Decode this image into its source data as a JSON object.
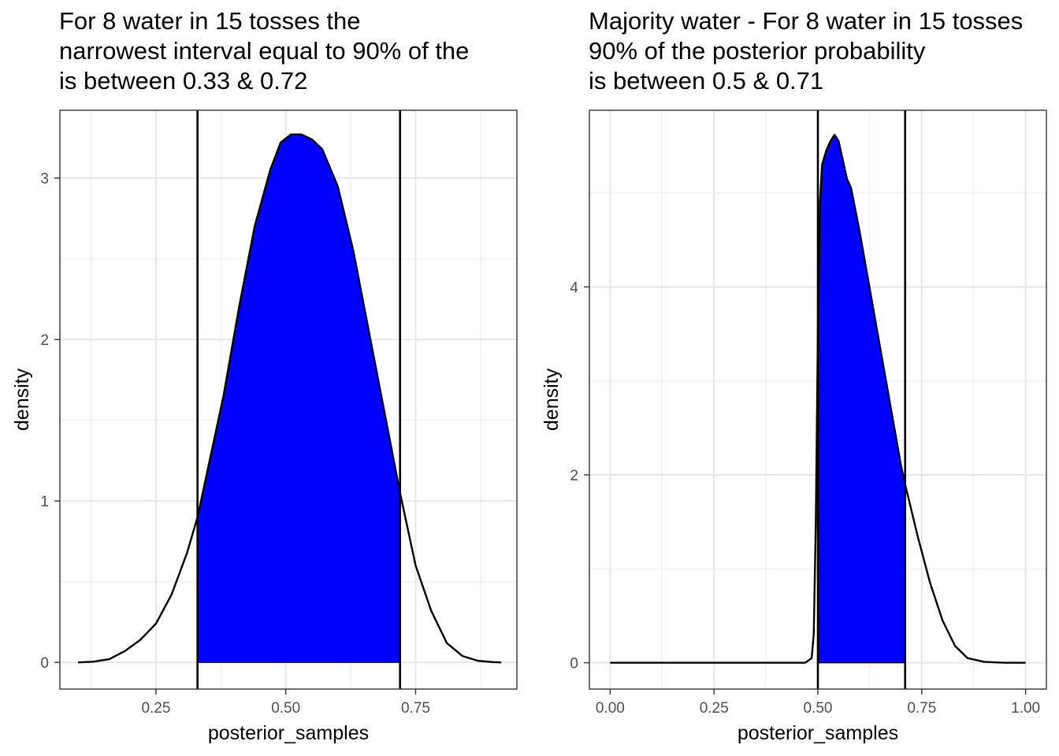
{
  "chart_data": [
    {
      "type": "area",
      "title_lines": [
        "For 8 water in 15 tosses the",
        "narrowest interval equal to 90% of the",
        "is between 0.33 & 0.72"
      ],
      "xlabel": "posterior_samples",
      "ylabel": "density",
      "xlim": [
        0.065,
        0.945
      ],
      "ylim": [
        -0.165,
        3.42
      ],
      "xticks": [
        0.25,
        0.5,
        0.75
      ],
      "xtick_labels": [
        "0.25",
        "0.50",
        "0.75"
      ],
      "yticks": [
        0,
        1,
        2,
        3
      ],
      "ytick_labels": [
        "0",
        "1",
        "2",
        "3"
      ],
      "grid": true,
      "shade_color": "#0000ff",
      "interval": [
        0.33,
        0.72
      ],
      "series": [
        {
          "x": [
            0.1,
            0.13,
            0.16,
            0.19,
            0.22,
            0.25,
            0.28,
            0.31,
            0.33,
            0.35,
            0.38,
            0.41,
            0.44,
            0.47,
            0.49,
            0.51,
            0.53,
            0.55,
            0.57,
            0.6,
            0.63,
            0.66,
            0.69,
            0.72,
            0.75,
            0.78,
            0.81,
            0.84,
            0.87,
            0.9,
            0.915
          ],
          "y": [
            0.0,
            0.005,
            0.02,
            0.07,
            0.14,
            0.24,
            0.42,
            0.68,
            0.9,
            1.2,
            1.65,
            2.2,
            2.7,
            3.05,
            3.22,
            3.27,
            3.27,
            3.24,
            3.18,
            2.95,
            2.55,
            2.05,
            1.55,
            1.05,
            0.6,
            0.32,
            0.12,
            0.04,
            0.01,
            0.002,
            0.0
          ]
        }
      ]
    },
    {
      "type": "area",
      "title_lines": [
        "Majority water - For 8 water in 15 tosses",
        "90% of the posterior probability",
        "is between 0.5 & 0.71"
      ],
      "xlabel": "posterior_samples",
      "ylabel": "density",
      "xlim": [
        -0.05,
        1.05
      ],
      "ylim": [
        -0.28,
        5.88
      ],
      "xticks": [
        0.0,
        0.25,
        0.5,
        0.75,
        1.0
      ],
      "xtick_labels": [
        "0.00",
        "0.25",
        "0.50",
        "0.75",
        "1.00"
      ],
      "yticks": [
        0,
        2,
        4
      ],
      "ytick_labels": [
        "0",
        "2",
        "4"
      ],
      "grid": true,
      "shade_color": "#0000ff",
      "interval": [
        0.5,
        0.71
      ],
      "series": [
        {
          "x": [
            0.0,
            0.2,
            0.4,
            0.47,
            0.485,
            0.49,
            0.495,
            0.5,
            0.505,
            0.51,
            0.52,
            0.53,
            0.54,
            0.55,
            0.56,
            0.57,
            0.58,
            0.6,
            0.62,
            0.64,
            0.66,
            0.68,
            0.7,
            0.71,
            0.74,
            0.77,
            0.8,
            0.83,
            0.86,
            0.9,
            0.95,
            1.0
          ],
          "y": [
            0.0,
            0.0,
            0.0,
            0.0,
            0.05,
            0.3,
            1.5,
            3.5,
            4.9,
            5.3,
            5.45,
            5.55,
            5.62,
            5.55,
            5.35,
            5.15,
            5.05,
            4.6,
            4.1,
            3.6,
            3.1,
            2.6,
            2.1,
            1.9,
            1.35,
            0.85,
            0.45,
            0.18,
            0.05,
            0.01,
            0.0,
            0.0
          ]
        }
      ]
    }
  ]
}
